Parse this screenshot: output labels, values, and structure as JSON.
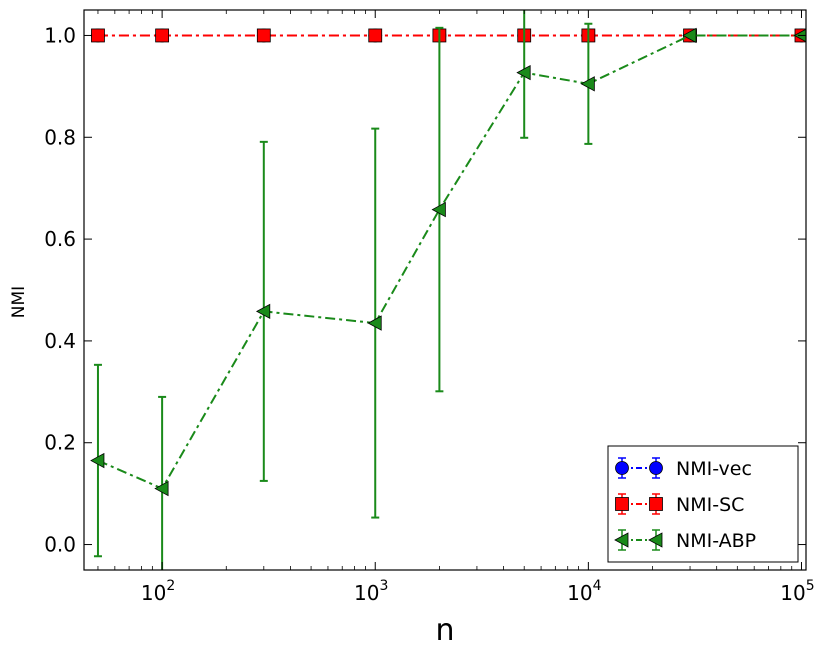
{
  "chart_data": {
    "type": "line",
    "xlabel": "n",
    "ylabel": "NMI",
    "xscale": "log",
    "xlim": [
      43,
      105000
    ],
    "ylim": [
      -0.05,
      1.05
    ],
    "x_ticks": [
      {
        "value": 100,
        "base": "10",
        "exp": "2"
      },
      {
        "value": 1000,
        "base": "10",
        "exp": "3"
      },
      {
        "value": 10000,
        "base": "10",
        "exp": "4"
      },
      {
        "value": 100000,
        "base": "10",
        "exp": "5"
      }
    ],
    "y_ticks": [
      "0.0",
      "0.2",
      "0.4",
      "0.6",
      "0.8",
      "1.0"
    ],
    "legend": "bottom-right",
    "series": [
      {
        "name": "NMI-vec",
        "color": "#0000ff",
        "marker": "circle",
        "x": [
          50,
          100,
          300,
          1000,
          2000,
          5000,
          10000,
          30000,
          100000
        ],
        "y": [
          1.0,
          1.0,
          1.0,
          1.0,
          1.0,
          1.0,
          1.0,
          1.0,
          1.0
        ],
        "err": [
          0,
          0,
          0,
          0,
          0,
          0,
          0,
          0,
          0
        ]
      },
      {
        "name": "NMI-SC",
        "color": "#ff0000",
        "marker": "square",
        "x": [
          50,
          100,
          300,
          1000,
          2000,
          5000,
          10000,
          30000,
          100000
        ],
        "y": [
          1.0,
          1.0,
          1.0,
          1.0,
          1.0,
          1.0,
          1.0,
          1.0,
          1.0
        ],
        "err": [
          0,
          0,
          0,
          0,
          0,
          0,
          0,
          0,
          0
        ]
      },
      {
        "name": "NMI-ABP",
        "color": "#1a8a1a",
        "marker": "triangle-left",
        "x": [
          50,
          100,
          300,
          1000,
          2000,
          5000,
          10000,
          30000,
          100000
        ],
        "y": [
          0.165,
          0.11,
          0.458,
          0.435,
          0.658,
          0.927,
          0.905,
          1.0,
          1.0
        ],
        "err": [
          0.188,
          0.18,
          0.333,
          0.382,
          0.357,
          0.128,
          0.118,
          0,
          0
        ]
      }
    ]
  }
}
